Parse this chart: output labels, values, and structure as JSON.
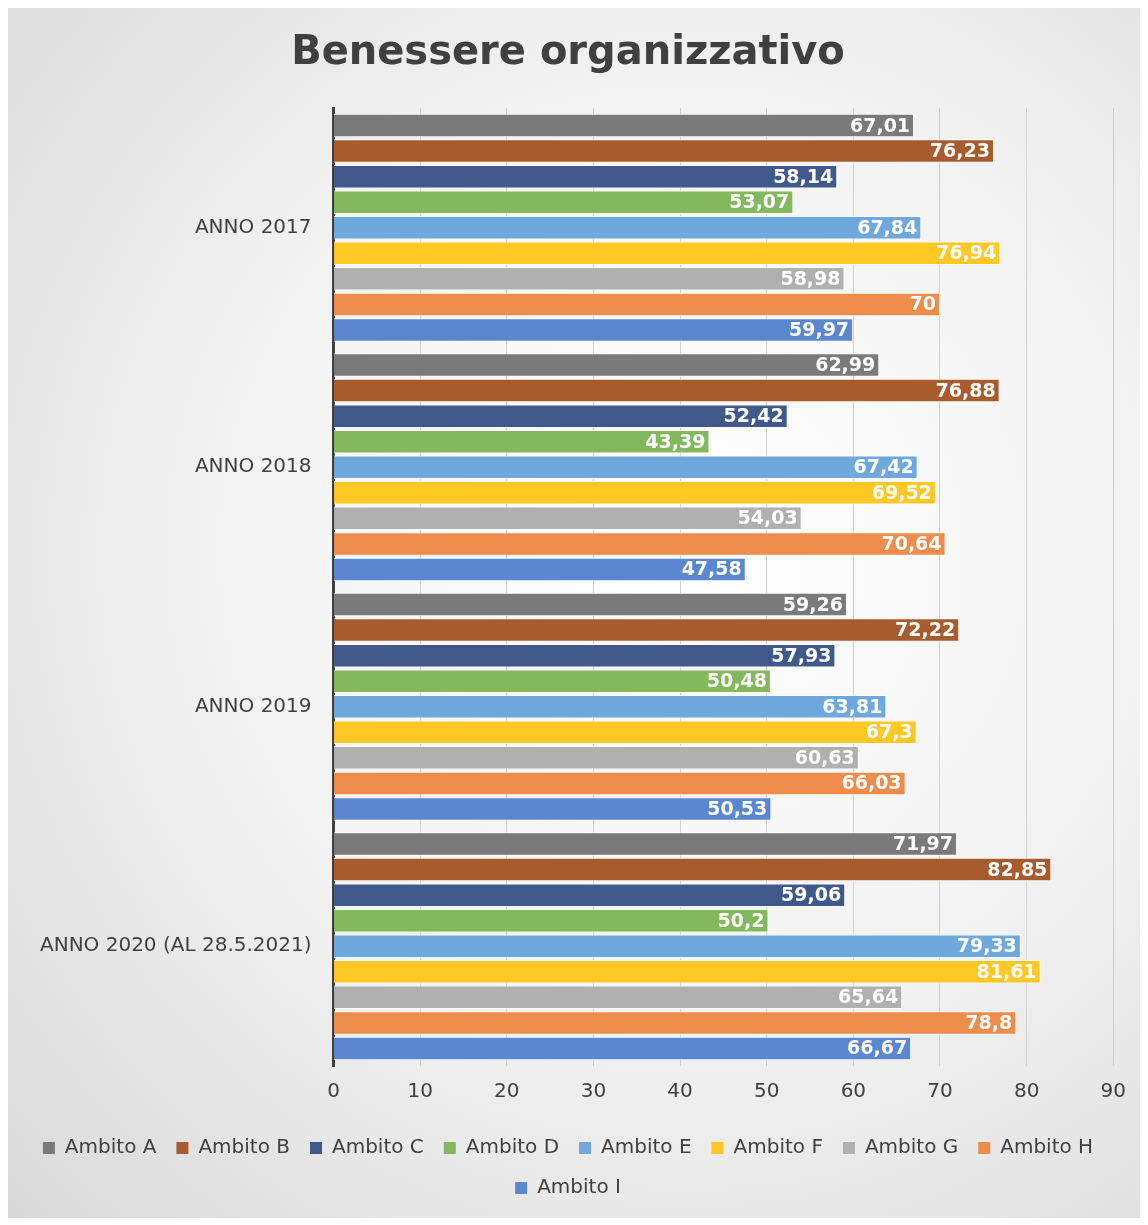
{
  "chart_data": {
    "type": "bar",
    "orientation": "horizontal",
    "title": "Benessere organizzativo",
    "categories": [
      "ANNO 2017",
      "ANNO 2018",
      "ANNO 2019",
      "ANNO 2020 (AL 28.5.2021)"
    ],
    "series": [
      {
        "name": "Ambito A",
        "color": "#7a7a7a",
        "values": [
          67.01,
          62.99,
          59.26,
          71.97
        ],
        "value_labels": [
          "67,01",
          "62,99",
          "59,26",
          "71,97"
        ]
      },
      {
        "name": "Ambito B",
        "color": "#a85c2e",
        "values": [
          76.23,
          76.88,
          72.22,
          82.85
        ],
        "value_labels": [
          "76,23",
          "76,88",
          "72,22",
          "82,85"
        ]
      },
      {
        "name": "Ambito C",
        "color": "#3f5a8a",
        "values": [
          58.14,
          52.42,
          57.93,
          59.06
        ],
        "value_labels": [
          "58,14",
          "52,42",
          "57,93",
          "59,06"
        ]
      },
      {
        "name": "Ambito D",
        "color": "#82b85e",
        "values": [
          53.07,
          43.39,
          50.48,
          50.2
        ],
        "value_labels": [
          "53,07",
          "43,39",
          "50,48",
          "50,2"
        ]
      },
      {
        "name": "Ambito E",
        "color": "#6fa8dc",
        "values": [
          67.84,
          67.42,
          63.81,
          79.33
        ],
        "value_labels": [
          "67,84",
          "67,42",
          "63,81",
          "79,33"
        ]
      },
      {
        "name": "Ambito F",
        "color": "#ffc824",
        "values": [
          76.94,
          69.52,
          67.3,
          81.61
        ],
        "value_labels": [
          "76,94",
          "69,52",
          "67,3",
          "81,61"
        ]
      },
      {
        "name": "Ambito G",
        "color": "#b0b0b0",
        "values": [
          58.98,
          54.03,
          60.63,
          65.64
        ],
        "value_labels": [
          "58,98",
          "54,03",
          "60,63",
          "65,64"
        ]
      },
      {
        "name": "Ambito H",
        "color": "#ee8c4c",
        "values": [
          70,
          70.64,
          66.03,
          78.8
        ],
        "value_labels": [
          "70",
          "70,64",
          "66,03",
          "78,8"
        ]
      },
      {
        "name": "Ambito I",
        "color": "#5b86d0",
        "values": [
          59.97,
          47.58,
          50.53,
          66.67
        ],
        "value_labels": [
          "59,97",
          "47,58",
          "50,53",
          "66,67"
        ]
      }
    ],
    "xlim": [
      0,
      90
    ],
    "xticks": [
      0,
      10,
      20,
      30,
      40,
      50,
      60,
      70,
      80,
      90
    ],
    "grid": "x",
    "legend": "bottom"
  }
}
